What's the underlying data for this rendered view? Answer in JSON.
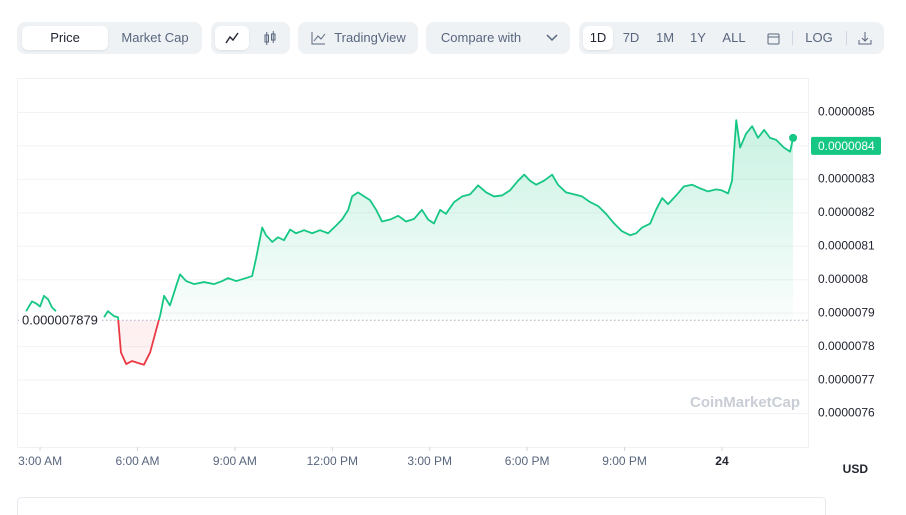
{
  "toolbar": {
    "views": [
      "Price",
      "Market Cap"
    ],
    "tradingview": "TradingView",
    "compare": "Compare with",
    "ranges": [
      "1D",
      "7D",
      "1M",
      "1Y",
      "ALL"
    ],
    "log": "LOG"
  },
  "chart_data": {
    "type": "line",
    "currency": "USD",
    "watermark": "CoinMarketCap",
    "reference_price": 7.879e-06,
    "last_price": 8.4e-06,
    "up_color": "#16c784",
    "down_color": "#ea3943",
    "grid": true,
    "xlim": [
      2.32,
      26.65
    ],
    "xticks": [
      {
        "value": 3,
        "label": "3:00 AM"
      },
      {
        "value": 6,
        "label": "6:00 AM"
      },
      {
        "value": 9,
        "label": "9:00 AM"
      },
      {
        "value": 12,
        "label": "12:00 PM"
      },
      {
        "value": 15,
        "label": "3:00 PM"
      },
      {
        "value": 18,
        "label": "6:00 PM"
      },
      {
        "value": 21,
        "label": "9:00 PM"
      },
      24
    ],
    "ylim": [
      7.5e-06,
      8.6e-06
    ],
    "yticks": [
      7.6e-06,
      7.7e-06,
      7.8e-06,
      7.9e-06,
      8e-06,
      8.1e-06,
      8.2e-06,
      8.3e-06,
      8.4e-06,
      8.5e-06
    ],
    "x": [
      2.57,
      2.75,
      2.88,
      3.0,
      3.12,
      3.25,
      3.37,
      3.49,
      4.23,
      4.97,
      5.09,
      5.28,
      5.4,
      5.49,
      5.65,
      5.83,
      6.02,
      6.2,
      6.39,
      6.57,
      6.7,
      6.82,
      7.0,
      7.19,
      7.31,
      7.5,
      7.74,
      8.05,
      8.36,
      8.61,
      8.79,
      9.04,
      9.34,
      9.53,
      9.65,
      9.84,
      9.96,
      10.15,
      10.33,
      10.51,
      10.7,
      10.88,
      11.13,
      11.38,
      11.62,
      11.87,
      12.12,
      12.3,
      12.49,
      12.61,
      12.79,
      12.98,
      13.16,
      13.35,
      13.53,
      13.78,
      14.03,
      14.27,
      14.52,
      14.76,
      14.95,
      15.13,
      15.32,
      15.5,
      15.75,
      16.0,
      16.24,
      16.49,
      16.74,
      16.98,
      17.23,
      17.47,
      17.72,
      17.91,
      18.09,
      18.28,
      18.52,
      18.77,
      18.95,
      19.2,
      19.45,
      19.69,
      19.94,
      20.19,
      20.43,
      20.68,
      20.92,
      21.17,
      21.36,
      21.54,
      21.79,
      21.97,
      22.16,
      22.34,
      22.59,
      22.83,
      23.08,
      23.33,
      23.57,
      23.82,
      24.0,
      24.19,
      24.31,
      24.44,
      24.56,
      24.74,
      24.93,
      25.11,
      25.3,
      25.48,
      25.67,
      25.91,
      26.1,
      26.19
    ],
    "values": [
      7.906e-06,
      7.935e-06,
      7.929e-06,
      7.92e-06,
      7.952e-06,
      7.941e-06,
      7.917e-06,
      7.906e-06,
      null,
      7.888e-06,
      7.906e-06,
      7.891e-06,
      7.888e-06,
      7.783e-06,
      7.748e-06,
      7.757e-06,
      7.751e-06,
      7.746e-06,
      7.783e-06,
      7.848e-06,
      7.894e-06,
      7.952e-06,
      7.923e-06,
      7.981e-06,
      8.016e-06,
      7.996e-06,
      7.987e-06,
      7.993e-06,
      7.987e-06,
      7.996e-06,
      8.005e-06,
      7.996e-06,
      8.005e-06,
      8.011e-06,
      8.063e-06,
      8.156e-06,
      8.133e-06,
      8.113e-06,
      8.127e-06,
      8.118e-06,
      8.15e-06,
      8.139e-06,
      8.148e-06,
      8.139e-06,
      8.148e-06,
      8.139e-06,
      8.162e-06,
      8.18e-06,
      8.209e-06,
      8.249e-06,
      8.261e-06,
      8.249e-06,
      8.238e-06,
      8.209e-06,
      8.174e-06,
      8.18e-06,
      8.191e-06,
      8.174e-06,
      8.182e-06,
      8.209e-06,
      8.18e-06,
      8.168e-06,
      8.209e-06,
      8.197e-06,
      8.232e-06,
      8.249e-06,
      8.255e-06,
      8.282e-06,
      8.261e-06,
      8.249e-06,
      8.252e-06,
      8.267e-06,
      8.296e-06,
      8.314e-06,
      8.296e-06,
      8.284e-06,
      8.296e-06,
      8.314e-06,
      8.284e-06,
      8.261e-06,
      8.255e-06,
      8.249e-06,
      8.232e-06,
      8.22e-06,
      8.197e-06,
      8.168e-06,
      8.145e-06,
      8.133e-06,
      8.139e-06,
      8.156e-06,
      8.168e-06,
      8.209e-06,
      8.244e-06,
      8.226e-06,
      8.252e-06,
      8.279e-06,
      8.284e-06,
      8.273e-06,
      8.264e-06,
      8.27e-06,
      8.267e-06,
      8.258e-06,
      8.296e-06,
      8.477e-06,
      8.395e-06,
      8.436e-06,
      8.459e-06,
      8.424e-06,
      8.448e-06,
      8.424e-06,
      8.418e-06,
      8.395e-06,
      8.383e-06,
      8.424e-06
    ]
  }
}
